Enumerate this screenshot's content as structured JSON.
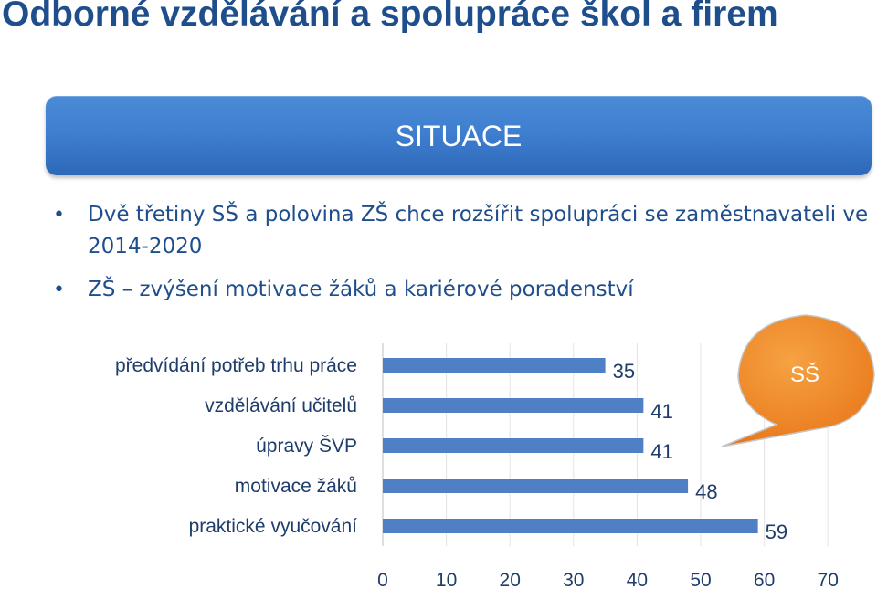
{
  "slide": {
    "title": "Odborné vzdělávání a spolupráce škol a firem",
    "banner": "SITUACE",
    "bullets": [
      "Dvě třetiny SŠ a polovina ZŠ chce rozšířit spolupráci se zaměstnavateli ve 2014-2020",
      "ZŠ – zvýšení motivace žáků a kariérové poradenství"
    ],
    "callout": "SŠ",
    "colors": {
      "title": "#1f4e8c",
      "banner": "#3f7fd0",
      "bar": "#4f7fc4",
      "callout": "#f08a1e"
    }
  },
  "chart_data": {
    "type": "bar",
    "orientation": "horizontal",
    "categories": [
      "předvídání potřeb trhu práce",
      "vzdělávání učitelů",
      "úpravy ŠVP",
      "motivace žáků",
      "praktické vyučování"
    ],
    "values": [
      35,
      41,
      41,
      48,
      59
    ],
    "value_labels": [
      "35",
      "41",
      "41",
      "48",
      "59"
    ],
    "xlim": [
      0,
      70
    ],
    "x_ticks": [
      0,
      10,
      20,
      30,
      40,
      50,
      60,
      70
    ],
    "x_tick_labels": [
      "0",
      "10",
      "20",
      "30",
      "40",
      "50",
      "60",
      "70"
    ],
    "grid": true,
    "title": "",
    "xlabel": "",
    "ylabel": ""
  }
}
